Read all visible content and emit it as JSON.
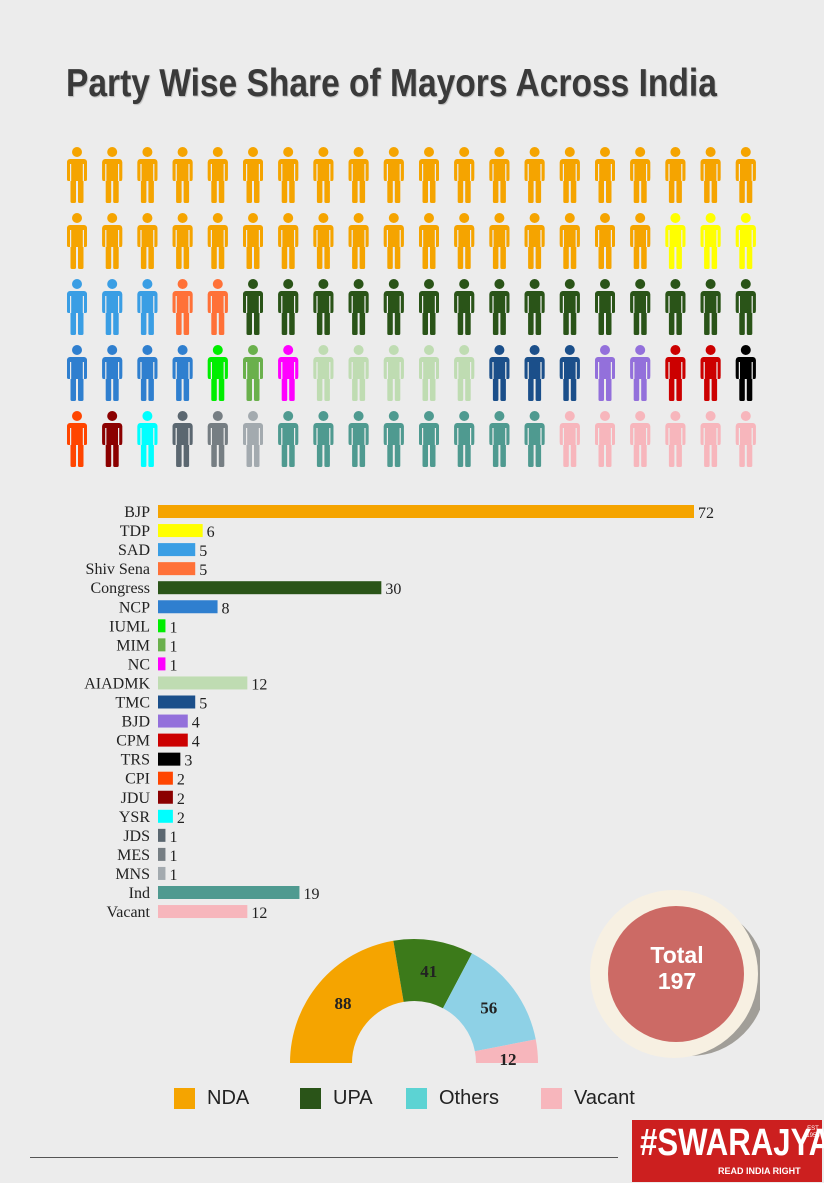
{
  "title": "Party Wise Share of Mayors Across India",
  "chart_data": [
    {
      "type": "bar",
      "orientation": "horizontal",
      "categories": [
        "BJP",
        "TDP",
        "SAD",
        "Shiv Sena",
        "Congress",
        "NCP",
        "IUML",
        "MIM",
        "NC",
        "AIADMK",
        "TMC",
        "BJD",
        "CPM",
        "TRS",
        "CPI",
        "JDU",
        "YSR",
        "JDS",
        "MES",
        "MNS",
        "Ind",
        "Vacant"
      ],
      "values": [
        72,
        6,
        5,
        5,
        30,
        8,
        1,
        1,
        1,
        12,
        5,
        4,
        4,
        3,
        2,
        2,
        2,
        1,
        1,
        1,
        19,
        12
      ],
      "colors": [
        "#f5a400",
        "#ffff00",
        "#3a9ee4",
        "#ff7138",
        "#2a5418",
        "#2f7fcf",
        "#00ee00",
        "#6ab04c",
        "#ff00ff",
        "#bfdcb2",
        "#1b4f8a",
        "#9370db",
        "#cc0000",
        "#000000",
        "#ff4500",
        "#8b0000",
        "#00ffff",
        "#5b6770",
        "#767e83",
        "#a3aaaf",
        "#4f9a90",
        "#f7b6bc"
      ],
      "title": "",
      "xlabel": "",
      "ylabel": ""
    },
    {
      "type": "pie",
      "style": "semi-donut",
      "categories": [
        "NDA",
        "UPA",
        "Others",
        "Vacant"
      ],
      "values": [
        88,
        41,
        56,
        12
      ],
      "colors": [
        "#f5a400",
        "#3c7a1a",
        "#8ed1e6",
        "#f7b6bc"
      ]
    },
    {
      "type": "pictogram",
      "rows": 5,
      "columns": 20,
      "icon": "person-icon",
      "colors": [
        "#f5a400",
        "#f5a400",
        "#f5a400",
        "#f5a400",
        "#f5a400",
        "#f5a400",
        "#f5a400",
        "#f5a400",
        "#f5a400",
        "#f5a400",
        "#f5a400",
        "#f5a400",
        "#f5a400",
        "#f5a400",
        "#f5a400",
        "#f5a400",
        "#f5a400",
        "#f5a400",
        "#f5a400",
        "#f5a400",
        "#f5a400",
        "#f5a400",
        "#f5a400",
        "#f5a400",
        "#f5a400",
        "#f5a400",
        "#f5a400",
        "#f5a400",
        "#f5a400",
        "#f5a400",
        "#f5a400",
        "#f5a400",
        "#f5a400",
        "#f5a400",
        "#f5a400",
        "#f5a400",
        "#f5a400",
        "#ffff00",
        "#ffff00",
        "#ffff00",
        "#3a9ee4",
        "#3a9ee4",
        "#3a9ee4",
        "#ff7138",
        "#ff7138",
        "#2a5418",
        "#2a5418",
        "#2a5418",
        "#2a5418",
        "#2a5418",
        "#2a5418",
        "#2a5418",
        "#2a5418",
        "#2a5418",
        "#2a5418",
        "#2a5418",
        "#2a5418",
        "#2a5418",
        "#2a5418",
        "#2a5418",
        "#2f7fcf",
        "#2f7fcf",
        "#2f7fcf",
        "#2f7fcf",
        "#00ee00",
        "#6ab04c",
        "#ff00ff",
        "#bfdcb2",
        "#bfdcb2",
        "#bfdcb2",
        "#bfdcb2",
        "#bfdcb2",
        "#1b4f8a",
        "#1b4f8a",
        "#1b4f8a",
        "#9370db",
        "#9370db",
        "#cc0000",
        "#cc0000",
        "#000000",
        "#ff4500",
        "#8b0000",
        "#00ffff",
        "#5b6770",
        "#767e83",
        "#a3aaaf",
        "#4f9a90",
        "#4f9a90",
        "#4f9a90",
        "#4f9a90",
        "#4f9a90",
        "#4f9a90",
        "#4f9a90",
        "#4f9a90",
        "#f7b6bc",
        "#f7b6bc",
        "#f7b6bc",
        "#f7b6bc",
        "#f7b6bc",
        "#f7b6bc"
      ]
    }
  ],
  "total": {
    "label": "Total",
    "value": "197",
    "color": "#cc6a65",
    "ring_color": "#f7f0e2",
    "shadow_color": "#a19e98"
  },
  "legend": [
    {
      "label": "NDA",
      "color": "#f5a400"
    },
    {
      "label": "UPA",
      "color": "#2a5418"
    },
    {
      "label": "Others",
      "color": "#5cd3d3"
    },
    {
      "label": "Vacant",
      "color": "#f7b6bc"
    }
  ],
  "brand": {
    "name": "#SWARAJYA",
    "tagline": "READ INDIA RIGHT",
    "est": "EST 1956",
    "color": "#cc1f1f"
  }
}
